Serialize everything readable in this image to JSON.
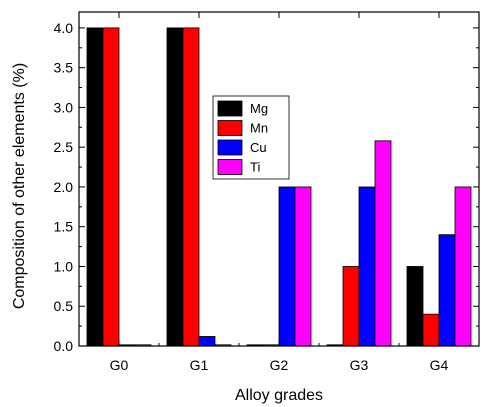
{
  "chart_data": {
    "type": "bar",
    "categories": [
      "G0",
      "G1",
      "G2",
      "G3",
      "G4"
    ],
    "series": [
      {
        "name": "Mg",
        "color": "#000000",
        "values": [
          4.0,
          4.0,
          0.0,
          0.0,
          1.0
        ]
      },
      {
        "name": "Mn",
        "color": "#ff0000",
        "values": [
          4.0,
          4.0,
          0.0,
          1.0,
          0.4
        ]
      },
      {
        "name": "Cu",
        "color": "#0000ff",
        "values": [
          0.0,
          0.12,
          2.0,
          2.0,
          1.4
        ]
      },
      {
        "name": "Ti",
        "color": "#ff00ff",
        "values": [
          0.0,
          0.0,
          2.0,
          2.58,
          2.0
        ]
      }
    ],
    "xlabel": "Alloy grades",
    "ylabel": "Composition of other elements (%)",
    "ylim": [
      0,
      4.2
    ],
    "yticks": [
      "0.0",
      "0.5",
      "1.0",
      "1.5",
      "2.0",
      "2.5",
      "3.0",
      "3.5",
      "4.0"
    ],
    "legend_placement": "center",
    "grid": false
  }
}
